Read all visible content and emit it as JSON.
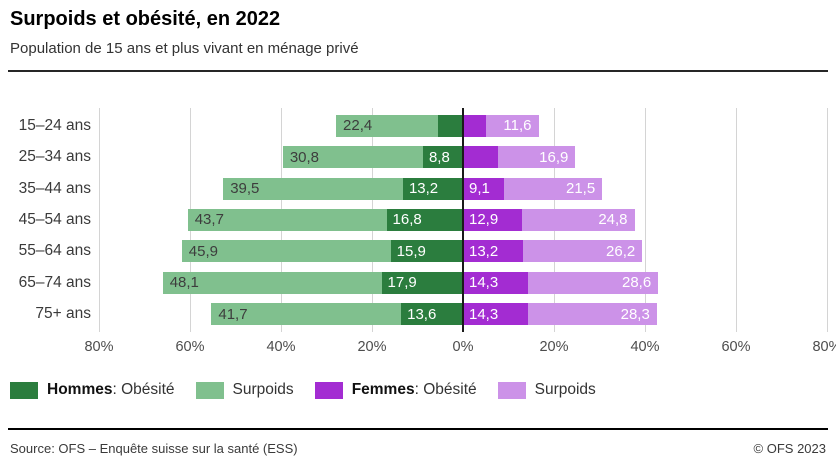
{
  "header": {
    "title": "Surpoids et obésité, en 2022",
    "subtitle": "Population de 15 ans et plus vivant en ménage privé"
  },
  "chart_data": {
    "type": "bar",
    "variant": "diverging-stacked-horizontal-pyramid",
    "title": "Surpoids et obésité, en 2022",
    "subtitle": "Population de 15 ans et plus vivant en ménage privé",
    "categories": [
      "15–24 ans",
      "25–34 ans",
      "35–44 ans",
      "45–54 ans",
      "55–64 ans",
      "65–74 ans",
      "75+ ans"
    ],
    "axis": {
      "unit": "%",
      "tick_labels": [
        "80%",
        "60%",
        "40%",
        "20%",
        "0%",
        "20%",
        "40%",
        "60%",
        "80%"
      ],
      "max_each_side": 80,
      "grid": true,
      "note": "left side = Hommes, right side = Femmes; obésité segment adjacent to the 0% axis, surpoids stacked outward"
    },
    "series": [
      {
        "name": "Hommes: Obésité",
        "side": "left",
        "color": "#2b7d3e",
        "values": [
          5.5,
          8.8,
          13.2,
          16.8,
          15.9,
          17.9,
          13.6
        ],
        "labels": [
          "",
          "8,8",
          "13,2",
          "16,8",
          "15,9",
          "17,9",
          "13,6"
        ]
      },
      {
        "name": "Hommes: Surpoids",
        "side": "left",
        "color": "#80c08e",
        "values": [
          22.4,
          30.8,
          39.5,
          43.7,
          45.9,
          48.1,
          41.7
        ],
        "labels": [
          "22,4",
          "30,8",
          "39,5",
          "43,7",
          "45,9",
          "48,1",
          "41,7"
        ]
      },
      {
        "name": "Femmes: Obésité",
        "side": "right",
        "color": "#a32cd2",
        "values": [
          5.0,
          7.8,
          9.1,
          12.9,
          13.2,
          14.3,
          14.3
        ],
        "labels": [
          "",
          "",
          "9,1",
          "12,9",
          "13,2",
          "14,3",
          "14,3"
        ]
      },
      {
        "name": "Femmes: Surpoids",
        "side": "right",
        "color": "#cc92e8",
        "values": [
          11.6,
          16.9,
          21.5,
          24.8,
          26.2,
          28.6,
          28.3
        ],
        "labels": [
          "11,6",
          "16,9",
          "21,5",
          "24,8",
          "26,2",
          "28,6",
          "28,3"
        ]
      }
    ]
  },
  "legend": {
    "items": [
      {
        "bold": "Hommes",
        "rest": ": Obésité",
        "color": "#2b7d3e"
      },
      {
        "bold": "",
        "rest": "Surpoids",
        "color": "#80c08e"
      },
      {
        "bold": "Femmes",
        "rest": ": Obésité",
        "color": "#a32cd2"
      },
      {
        "bold": "",
        "rest": "Surpoids",
        "color": "#cc92e8"
      }
    ]
  },
  "footer": {
    "source": "Source: OFS – Enquête suisse sur la santé (ESS)",
    "copyright": "© OFS 2023"
  },
  "colors": {
    "hommes_obesite": "#2b7d3e",
    "hommes_surpoids": "#80c08e",
    "femmes_obesite": "#a32cd2",
    "femmes_surpoids": "#cc92e8",
    "gridline": "#d4d4d4",
    "zero_axis": "#1a1a1a"
  }
}
